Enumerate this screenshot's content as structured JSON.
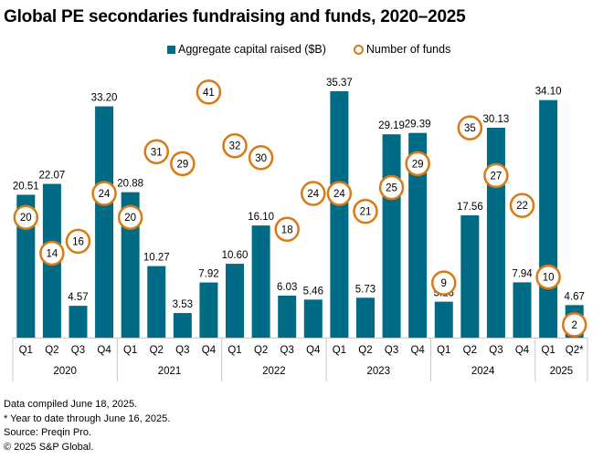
{
  "chart_data": {
    "type": "bar",
    "title": "Global PE secondaries fundraising and funds, 2020–2025",
    "xlabel": "",
    "ylabel": "",
    "legend": [
      {
        "name": "Aggregate capital raised ($B)",
        "marker": "bar",
        "color": "#006b84"
      },
      {
        "name": "Number of funds",
        "marker": "circle",
        "color": "#d97a14"
      }
    ],
    "legend_position": "top-center",
    "grid": false,
    "categories": [
      "Q1",
      "Q2",
      "Q3",
      "Q4",
      "Q1",
      "Q2",
      "Q3",
      "Q4",
      "Q1",
      "Q2",
      "Q3",
      "Q4",
      "Q1",
      "Q2",
      "Q3",
      "Q4",
      "Q1",
      "Q2",
      "Q3",
      "Q4",
      "Q1",
      "Q2*"
    ],
    "years": [
      {
        "label": "2020",
        "count": 4
      },
      {
        "label": "2021",
        "count": 4
      },
      {
        "label": "2022",
        "count": 4
      },
      {
        "label": "2023",
        "count": 4
      },
      {
        "label": "2024",
        "count": 4
      },
      {
        "label": "2025",
        "count": 2
      }
    ],
    "series": [
      {
        "name": "Aggregate capital raised ($B)",
        "type": "bar",
        "values": [
          20.51,
          22.07,
          4.57,
          33.2,
          20.88,
          10.27,
          3.53,
          7.92,
          10.6,
          16.1,
          6.03,
          5.46,
          35.37,
          5.73,
          29.19,
          29.39,
          5.16,
          17.56,
          30.13,
          7.94,
          34.1,
          4.67
        ],
        "labels": [
          "20.51",
          "22.07",
          "4.57",
          "33.20",
          "20.88",
          "10.27",
          "3.53",
          "7.92",
          "10.60",
          "16.10",
          "6.03",
          "5.46",
          "35.37",
          "5.73",
          "29.19",
          "29.39",
          "5.16",
          "17.56",
          "30.13",
          "7.94",
          "34.10",
          "4.67"
        ]
      },
      {
        "name": "Number of funds",
        "type": "scatter",
        "values": [
          20,
          14,
          16,
          24,
          20,
          31,
          29,
          41,
          32,
          30,
          18,
          24,
          24,
          21,
          25,
          29,
          9,
          35,
          27,
          22,
          10,
          2
        ]
      }
    ],
    "ylim": [
      0,
      35.5
    ],
    "ylim_secondary": [
      0,
      42
    ]
  },
  "footer": {
    "line1": "Data compiled June 18, 2025.",
    "line2": "* Year to date through June 16, 2025.",
    "line3": "Source: Preqin Pro.",
    "line4": "© 2025 S&P Global."
  }
}
